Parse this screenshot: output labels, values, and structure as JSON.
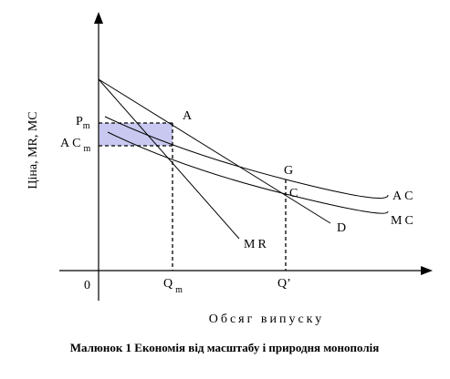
{
  "diagram": {
    "y_axis_label": "Ціна, MR, MC",
    "x_axis_label": "Обсяг випуску",
    "origin": "0",
    "price_label": {
      "text": "P",
      "sub": "m"
    },
    "avg_cost_label": {
      "text": "AC",
      "sub": "m"
    },
    "quantity_label": {
      "text": "Q",
      "sub": "m"
    },
    "quantity2_label": "Q’",
    "points": {
      "a": "A",
      "g": "G",
      "c": "C"
    },
    "curves": {
      "demand": "D",
      "marginal_revenue": "MR",
      "average_cost": "AC",
      "marginal_cost": "MC"
    },
    "caption": "Малюнок 1 Економія від масштабу і природня монополія"
  }
}
